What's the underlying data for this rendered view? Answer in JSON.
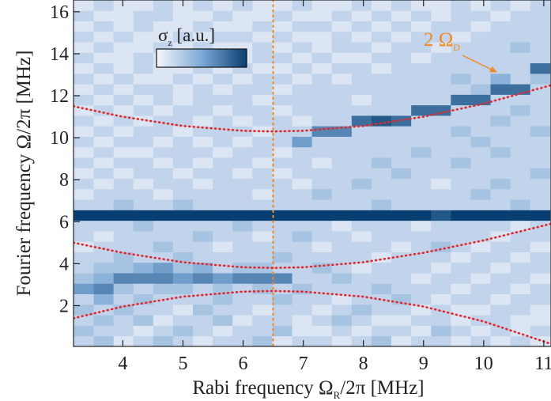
{
  "chart_data": {
    "type": "heatmap",
    "xlabel": {
      "main": "Rabi frequency Ω",
      "sub": "R",
      "rest": "/2π [MHz]"
    },
    "ylabel": "Fourier frequency Ω/2π [MHz]",
    "xlim": [
      3.18,
      11.12
    ],
    "ylim": [
      0.06,
      16.56
    ],
    "xticks": [
      4,
      5,
      6,
      7,
      8,
      9,
      10,
      11
    ],
    "yticks": [
      2,
      4,
      6,
      8,
      10,
      12,
      14,
      16
    ],
    "x": [
      3.35,
      3.68,
      4.01,
      4.34,
      4.67,
      5.0,
      5.33,
      5.66,
      5.99,
      6.32,
      6.65,
      6.98,
      7.31,
      7.64,
      7.97,
      8.3,
      8.63,
      8.96,
      9.29,
      9.62,
      9.95,
      10.28,
      10.61,
      10.94
    ],
    "y": [
      0.31,
      0.81,
      1.31,
      1.81,
      2.31,
      2.81,
      3.31,
      3.81,
      4.31,
      4.81,
      5.31,
      5.81,
      6.31,
      6.81,
      7.31,
      7.81,
      8.31,
      8.81,
      9.31,
      9.81,
      10.31,
      10.81,
      11.31,
      11.81,
      12.31,
      12.81,
      13.31,
      13.81,
      14.31,
      14.81,
      15.31,
      15.81,
      16.31
    ],
    "z": [
      [
        2,
        3,
        1,
        2,
        3,
        2,
        1,
        2,
        2,
        3,
        1,
        2,
        2,
        1,
        2,
        3,
        1,
        2,
        2,
        1,
        2,
        1,
        2,
        1
      ],
      [
        3,
        2,
        2,
        1,
        2,
        3,
        2,
        1,
        2,
        2,
        3,
        1,
        1,
        2,
        1,
        2,
        2,
        1,
        3,
        2,
        1,
        2,
        1,
        2
      ],
      [
        2,
        3,
        2,
        3,
        1,
        2,
        2,
        3,
        1,
        2,
        2,
        1,
        2,
        3,
        2,
        1,
        1,
        2,
        2,
        1,
        2,
        2,
        1,
        1
      ],
      [
        3,
        2,
        3,
        2,
        2,
        1,
        3,
        2,
        2,
        1,
        2,
        2,
        1,
        2,
        3,
        2,
        2,
        1,
        2,
        1,
        1,
        2,
        2,
        1
      ],
      [
        2,
        4,
        2,
        3,
        2,
        2,
        2,
        3,
        2,
        2,
        3,
        2,
        2,
        1,
        2,
        2,
        3,
        2,
        1,
        2,
        2,
        1,
        2,
        2
      ],
      [
        5,
        6,
        3,
        2,
        3,
        3,
        2,
        3,
        2,
        3,
        2,
        3,
        2,
        2,
        2,
        3,
        2,
        2,
        2,
        1,
        2,
        2,
        1,
        2
      ],
      [
        3,
        4,
        6,
        6,
        6,
        5,
        6,
        5,
        6,
        6,
        6,
        2,
        2,
        3,
        2,
        2,
        2,
        1,
        2,
        2,
        1,
        2,
        2,
        1
      ],
      [
        2,
        3,
        3,
        4,
        5,
        3,
        4,
        2,
        3,
        3,
        2,
        2,
        3,
        2,
        1,
        2,
        2,
        2,
        1,
        2,
        2,
        1,
        2,
        2
      ],
      [
        2,
        2,
        3,
        2,
        2,
        3,
        2,
        2,
        2,
        2,
        3,
        2,
        2,
        2,
        2,
        1,
        2,
        2,
        2,
        1,
        2,
        2,
        1,
        2
      ],
      [
        1,
        2,
        2,
        2,
        3,
        2,
        2,
        1,
        2,
        2,
        2,
        2,
        1,
        2,
        2,
        2,
        1,
        2,
        3,
        2,
        1,
        2,
        2,
        1
      ],
      [
        2,
        1,
        2,
        2,
        2,
        2,
        3,
        2,
        2,
        1,
        2,
        3,
        2,
        2,
        1,
        2,
        2,
        2,
        2,
        2,
        2,
        1,
        2,
        2
      ],
      [
        2,
        2,
        2,
        3,
        2,
        2,
        2,
        2,
        3,
        2,
        2,
        2,
        2,
        1,
        2,
        2,
        2,
        1,
        2,
        2,
        2,
        2,
        1,
        2
      ],
      [
        9,
        9,
        9,
        9,
        9,
        9,
        9,
        9,
        9,
        9,
        9,
        9,
        9,
        9,
        9,
        9,
        9,
        9,
        8,
        9,
        9,
        9,
        9,
        9
      ],
      [
        2,
        2,
        3,
        2,
        2,
        3,
        2,
        2,
        2,
        2,
        2,
        2,
        2,
        2,
        2,
        3,
        2,
        2,
        2,
        2,
        2,
        2,
        3,
        2
      ],
      [
        1,
        2,
        2,
        2,
        1,
        2,
        2,
        2,
        2,
        1,
        2,
        2,
        3,
        2,
        2,
        2,
        2,
        2,
        2,
        2,
        3,
        2,
        2,
        2
      ],
      [
        2,
        1,
        2,
        1,
        2,
        2,
        1,
        2,
        2,
        2,
        2,
        1,
        2,
        2,
        3,
        2,
        2,
        2,
        1,
        2,
        2,
        3,
        2,
        2
      ],
      [
        1,
        2,
        1,
        2,
        2,
        1,
        2,
        2,
        1,
        2,
        1,
        2,
        2,
        2,
        2,
        2,
        3,
        2,
        2,
        2,
        2,
        2,
        2,
        3
      ],
      [
        2,
        1,
        2,
        2,
        1,
        2,
        1,
        2,
        2,
        1,
        2,
        2,
        1,
        2,
        2,
        3,
        2,
        2,
        2,
        3,
        2,
        2,
        2,
        2
      ],
      [
        1,
        2,
        1,
        1,
        2,
        2,
        2,
        1,
        2,
        2,
        1,
        2,
        2,
        2,
        2,
        2,
        2,
        3,
        2,
        2,
        2,
        3,
        2,
        2
      ],
      [
        2,
        1,
        2,
        2,
        1,
        2,
        1,
        2,
        1,
        2,
        2,
        5,
        2,
        2,
        2,
        2,
        2,
        2,
        2,
        2,
        3,
        2,
        2,
        2
      ],
      [
        1,
        2,
        1,
        2,
        2,
        1,
        2,
        2,
        2,
        1,
        2,
        2,
        6,
        6,
        2,
        2,
        2,
        2,
        2,
        3,
        2,
        2,
        2,
        3
      ],
      [
        2,
        1,
        2,
        1,
        2,
        2,
        1,
        2,
        1,
        2,
        2,
        1,
        2,
        2,
        7,
        8,
        7,
        2,
        2,
        2,
        2,
        3,
        2,
        2
      ],
      [
        1,
        2,
        1,
        2,
        1,
        2,
        2,
        1,
        2,
        2,
        1,
        2,
        2,
        2,
        2,
        2,
        2,
        7,
        7,
        2,
        2,
        2,
        3,
        2
      ],
      [
        2,
        1,
        2,
        1,
        2,
        1,
        2,
        2,
        2,
        1,
        2,
        2,
        2,
        2,
        1,
        2,
        2,
        2,
        2,
        7,
        7,
        2,
        2,
        2
      ],
      [
        1,
        2,
        1,
        2,
        2,
        1,
        2,
        1,
        2,
        2,
        1,
        2,
        2,
        2,
        2,
        2,
        2,
        2,
        2,
        2,
        3,
        7,
        7,
        2
      ],
      [
        2,
        1,
        2,
        1,
        1,
        2,
        1,
        2,
        1,
        2,
        2,
        1,
        2,
        1,
        2,
        2,
        2,
        2,
        2,
        3,
        2,
        4,
        2,
        3
      ],
      [
        1,
        2,
        1,
        2,
        1,
        1,
        2,
        1,
        2,
        1,
        1,
        2,
        1,
        2,
        2,
        1,
        2,
        2,
        2,
        2,
        2,
        2,
        2,
        7
      ],
      [
        2,
        1,
        1,
        2,
        1,
        2,
        1,
        2,
        1,
        2,
        2,
        1,
        2,
        1,
        1,
        2,
        2,
        1,
        2,
        2,
        2,
        2,
        2,
        2
      ],
      [
        1,
        2,
        1,
        1,
        2,
        1,
        2,
        1,
        1,
        2,
        1,
        2,
        1,
        2,
        2,
        1,
        2,
        2,
        1,
        2,
        2,
        2,
        3,
        2
      ],
      [
        2,
        1,
        2,
        1,
        1,
        2,
        1,
        2,
        2,
        1,
        2,
        1,
        1,
        2,
        1,
        2,
        1,
        2,
        2,
        1,
        2,
        2,
        2,
        2
      ],
      [
        1,
        2,
        1,
        2,
        1,
        1,
        2,
        1,
        1,
        2,
        1,
        2,
        2,
        1,
        2,
        1,
        2,
        1,
        2,
        2,
        1,
        2,
        2,
        2
      ],
      [
        2,
        1,
        1,
        2,
        2,
        1,
        1,
        2,
        1,
        1,
        2,
        1,
        1,
        2,
        1,
        2,
        1,
        2,
        1,
        2,
        2,
        1,
        2,
        2
      ],
      [
        1,
        2,
        1,
        1,
        2,
        1,
        2,
        1,
        2,
        1,
        1,
        2,
        1,
        1,
        2,
        1,
        2,
        1,
        1,
        2,
        1,
        2,
        1,
        2
      ]
    ],
    "zlim": [
      0,
      9
    ],
    "colormap": [
      "#f7f6fb",
      "#7ea9d6",
      "#083f72"
    ],
    "colorbar": {
      "label": "σ",
      "label_sub": "z",
      "label_rest": " [a.u.]"
    },
    "lines": [
      {
        "color": "#e0282e",
        "x": [
          3.18,
          4,
          5,
          6,
          6.5,
          7,
          8,
          9,
          10,
          11.12
        ],
        "y": [
          11.5,
          11.0,
          10.56,
          10.33,
          10.3,
          10.33,
          10.56,
          11.0,
          11.62,
          12.5
        ]
      },
      {
        "color": "#e0282e",
        "x": [
          3.18,
          4,
          5,
          6,
          6.5,
          7,
          8,
          9,
          10,
          11.12
        ],
        "y": [
          5.0,
          4.52,
          4.07,
          3.83,
          3.8,
          3.83,
          4.07,
          4.52,
          5.11,
          5.9
        ]
      },
      {
        "color": "#e0282e",
        "x": [
          3.18,
          4,
          5,
          6,
          6.5,
          7,
          8,
          9,
          10,
          11.12
        ],
        "y": [
          1.4,
          1.96,
          2.43,
          2.67,
          2.7,
          2.67,
          2.43,
          1.96,
          1.25,
          0.18
        ]
      }
    ],
    "vline": {
      "x": 6.5,
      "color": "#f08a24"
    },
    "annotation": {
      "text": "2 Ω",
      "sub": "D",
      "color": "#f08a24"
    }
  }
}
